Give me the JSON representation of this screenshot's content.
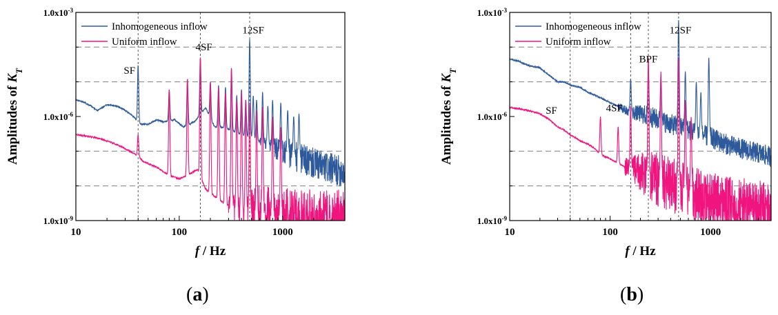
{
  "colors": {
    "inhomogeneous": "#2e5a9c",
    "uniform": "#f0147f",
    "grid": "#8c8c8c",
    "vline": "#555555",
    "axis": "#000000"
  },
  "panel_labels": [
    {
      "open": "(",
      "letter": "a",
      "close": ")"
    },
    {
      "open": "(",
      "letter": "b",
      "close": ")"
    }
  ],
  "chart_data": [
    {
      "type": "line",
      "panel": "a",
      "title": "",
      "xlabel": "f / Hz",
      "ylabel": "Amplitudes of K_T",
      "xlabel_parts": {
        "var": "f",
        "rest": " / Hz"
      },
      "ylabel_parts": {
        "main": "Amplitudes of ",
        "var": "K",
        "sub": "T"
      },
      "x_scale": "log",
      "y_scale": "log",
      "xlim": [
        10,
        4000
      ],
      "ylim": [
        1e-09,
        0.001
      ],
      "x_ticks": [
        10,
        100,
        1000
      ],
      "x_tick_labels": [
        "10",
        "100",
        "1000"
      ],
      "y_ticks": [
        1e-09,
        1e-06,
        0.001
      ],
      "y_tick_labels": [
        {
          "base": "1.0x10",
          "exp": "-9"
        },
        {
          "base": "1.0x10",
          "exp": "-6"
        },
        {
          "base": "1.0x10",
          "exp": "-3"
        }
      ],
      "grid_horizontal_dashed": [
        1e-08,
        1e-07,
        1e-05,
        0.0001
      ],
      "frequency_markers": [
        40,
        160,
        480
      ],
      "legend": {
        "position": "top-left",
        "entries": [
          "Inhomogeneous inflow",
          "Uniform inflow"
        ]
      },
      "annotations": [
        {
          "text": "SF",
          "x": 33,
          "y": 1.7e-05
        },
        {
          "text": "4SF",
          "x": 173,
          "y": 8e-05
        },
        {
          "text": "12SF",
          "x": 520,
          "y": 0.00025
        }
      ],
      "series": [
        {
          "name": "Inhomogeneous inflow",
          "color_key": "inhomogeneous",
          "baseline": [
            [
              10,
              3e-06
            ],
            [
              12,
              2.6e-06
            ],
            [
              14,
              2e-06
            ],
            [
              16,
              1.5e-06
            ],
            [
              18,
              1.8e-06
            ],
            [
              20,
              2.2e-06
            ],
            [
              25,
              2e-06
            ],
            [
              30,
              1.5e-06
            ],
            [
              36,
              1e-06
            ],
            [
              42,
              6e-07
            ],
            [
              50,
              6e-07
            ],
            [
              60,
              8e-07
            ],
            [
              70,
              7e-07
            ],
            [
              90,
              8e-07
            ],
            [
              110,
              5e-07
            ],
            [
              140,
              7e-07
            ],
            [
              180,
              1.8e-06
            ],
            [
              220,
              5e-07
            ],
            [
              260,
              5e-07
            ],
            [
              320,
              4e-07
            ],
            [
              400,
              3e-07
            ],
            [
              500,
              2.5e-07
            ],
            [
              700,
              1.5e-07
            ],
            [
              1000,
              1e-07
            ],
            [
              1500,
              6e-08
            ],
            [
              2500,
              3.5e-08
            ],
            [
              4000,
              2.5e-08
            ]
          ],
          "peaks": [
            [
              40,
              3e-05
            ],
            [
              80,
              6e-06
            ],
            [
              120,
              1.2e-05
            ],
            [
              160,
              5e-05
            ],
            [
              200,
              1e-05
            ],
            [
              240,
              8e-06
            ],
            [
              280,
              7e-06
            ],
            [
              320,
              2.5e-05
            ],
            [
              360,
              4e-06
            ],
            [
              400,
              6e-06
            ],
            [
              440,
              3e-06
            ],
            [
              480,
              0.00017
            ],
            [
              520,
              4e-06
            ],
            [
              560,
              3e-06
            ],
            [
              640,
              5e-06
            ],
            [
              720,
              2e-06
            ],
            [
              800,
              3e-06
            ],
            [
              960,
              2.5e-06
            ],
            [
              1120,
              1.5e-06
            ],
            [
              1280,
              1e-06
            ],
            [
              1440,
              1.2e-06
            ]
          ],
          "noise_from": 600,
          "noise_amp": 0.45
        },
        {
          "name": "Uniform inflow",
          "color_key": "uniform",
          "baseline": [
            [
              10,
              3e-07
            ],
            [
              12,
              2.8e-07
            ],
            [
              15,
              2.5e-07
            ],
            [
              18,
              2.2e-07
            ],
            [
              22,
              1.8e-07
            ],
            [
              27,
              1.4e-07
            ],
            [
              33,
              1e-07
            ],
            [
              38,
              8e-08
            ],
            [
              45,
              5e-08
            ],
            [
              60,
              3.5e-08
            ],
            [
              80,
              2e-08
            ],
            [
              100,
              1.6e-08
            ],
            [
              120,
              2e-08
            ],
            [
              150,
              3e-08
            ],
            [
              180,
              8e-09
            ],
            [
              220,
              5e-09
            ],
            [
              280,
              3e-09
            ],
            [
              350,
              2.2e-09
            ],
            [
              450,
              1.6e-09
            ],
            [
              600,
              1.3e-09
            ],
            [
              800,
              1.2e-09
            ],
            [
              1000,
              1.1e-09
            ],
            [
              2000,
              1e-09
            ],
            [
              4000,
              1e-09
            ]
          ],
          "peaks": [
            [
              40,
              3e-07
            ],
            [
              80,
              6e-06
            ],
            [
              120,
              1.2e-05
            ],
            [
              160,
              5e-05
            ],
            [
              200,
              1e-05
            ],
            [
              240,
              7e-06
            ],
            [
              280,
              5e-06
            ],
            [
              320,
              2.5e-05
            ],
            [
              360,
              3e-06
            ],
            [
              400,
              5e-06
            ],
            [
              440,
              3e-06
            ],
            [
              480,
              2.5e-06
            ],
            [
              560,
              1.5e-06
            ],
            [
              640,
              2e-06
            ],
            [
              800,
              1e-06
            ],
            [
              960,
              5e-07
            ]
          ],
          "noise_from": 300,
          "noise_amp": 0.9
        }
      ]
    },
    {
      "type": "line",
      "panel": "b",
      "title": "",
      "xlabel": "f / Hz",
      "ylabel": "Amplitudes of K_T",
      "xlabel_parts": {
        "var": "f",
        "rest": " / Hz"
      },
      "ylabel_parts": {
        "main": "Amplitudes of ",
        "var": "K",
        "sub": "T"
      },
      "x_scale": "log",
      "y_scale": "log",
      "xlim": [
        10,
        4000
      ],
      "ylim": [
        1e-09,
        0.001
      ],
      "x_ticks": [
        10,
        100,
        1000
      ],
      "x_tick_labels": [
        "10",
        "100",
        "1000"
      ],
      "y_ticks": [
        1e-09,
        1e-06,
        0.001
      ],
      "y_tick_labels": [
        {
          "base": "1.0x10",
          "exp": "-9"
        },
        {
          "base": "1.0x10",
          "exp": "-6"
        },
        {
          "base": "1.0x10",
          "exp": "-3"
        }
      ],
      "grid_horizontal_dashed": [
        1e-08,
        1e-07,
        1e-05,
        0.0001
      ],
      "frequency_markers": [
        40,
        160,
        240,
        480
      ],
      "legend": {
        "position": "top-left",
        "entries": [
          "Inhomogeneous inflow",
          "Uniform inflow"
        ]
      },
      "annotations": [
        {
          "text": "SF",
          "x": 26,
          "y": 1.2e-06
        },
        {
          "text": "4SF",
          "x": 110,
          "y": 1.4e-06
        },
        {
          "text": "BPF",
          "x": 240,
          "y": 3.6e-05
        },
        {
          "text": "12SF",
          "x": 500,
          "y": 0.00025
        }
      ],
      "series": [
        {
          "name": "Inhomogeneous inflow",
          "color_key": "inhomogeneous",
          "baseline": [
            [
              10,
              4.5e-05
            ],
            [
              12,
              4e-05
            ],
            [
              15,
              3e-05
            ],
            [
              20,
              2.5e-05
            ],
            [
              25,
              1.5e-05
            ],
            [
              30,
              1e-05
            ],
            [
              35,
              1e-05
            ],
            [
              40,
              8e-06
            ],
            [
              50,
              7e-06
            ],
            [
              60,
              5e-06
            ],
            [
              80,
              3.5e-06
            ],
            [
              100,
              2.5e-06
            ],
            [
              130,
              1.8e-06
            ],
            [
              160,
              1.3e-06
            ],
            [
              200,
              1.2e-06
            ],
            [
              250,
              1e-06
            ],
            [
              300,
              8e-07
            ],
            [
              400,
              6e-07
            ],
            [
              500,
              5e-07
            ],
            [
              700,
              3.5e-07
            ],
            [
              1000,
              2.5e-07
            ],
            [
              1500,
              1.5e-07
            ],
            [
              2500,
              1e-07
            ],
            [
              4000,
              7e-08
            ]
          ],
          "peaks": [
            [
              160,
              1.2e-05
            ],
            [
              240,
              2.5e-05
            ],
            [
              320,
              1.5e-05
            ],
            [
              480,
              0.0006
            ],
            [
              560,
              2e-05
            ],
            [
              720,
              1e-05
            ],
            [
              800,
              5e-06
            ],
            [
              960,
              5e-05
            ]
          ],
          "noise_from": 120,
          "noise_amp": 0.3
        },
        {
          "name": "Uniform inflow",
          "color_key": "uniform",
          "baseline": [
            [
              10,
              1.8e-06
            ],
            [
              12,
              1.7e-06
            ],
            [
              15,
              1.5e-06
            ],
            [
              20,
              1.2e-06
            ],
            [
              25,
              8e-07
            ],
            [
              30,
              5e-07
            ],
            [
              35,
              4e-07
            ],
            [
              40,
              3e-07
            ],
            [
              50,
              2e-07
            ],
            [
              60,
              1.6e-07
            ],
            [
              70,
              1.2e-07
            ],
            [
              80,
              8e-08
            ],
            [
              100,
              6e-08
            ],
            [
              130,
              4e-08
            ],
            [
              160,
              3e-08
            ],
            [
              200,
              2.5e-08
            ],
            [
              250,
              2e-08
            ],
            [
              300,
              1.5e-08
            ],
            [
              400,
              1.1e-08
            ],
            [
              500,
              8e-09
            ],
            [
              700,
              6e-09
            ],
            [
              1000,
              4e-09
            ],
            [
              1500,
              3e-09
            ],
            [
              2500,
              2.5e-09
            ],
            [
              4000,
              2e-09
            ]
          ],
          "peaks": [
            [
              80,
              1e-06
            ],
            [
              120,
              5e-07
            ],
            [
              160,
              2e-06
            ],
            [
              240,
              5e-05
            ],
            [
              320,
              2e-05
            ],
            [
              480,
              5e-05
            ],
            [
              560,
              3e-06
            ],
            [
              640,
              1e-06
            ]
          ],
          "noise_from": 140,
          "noise_amp": 0.8
        }
      ]
    }
  ]
}
